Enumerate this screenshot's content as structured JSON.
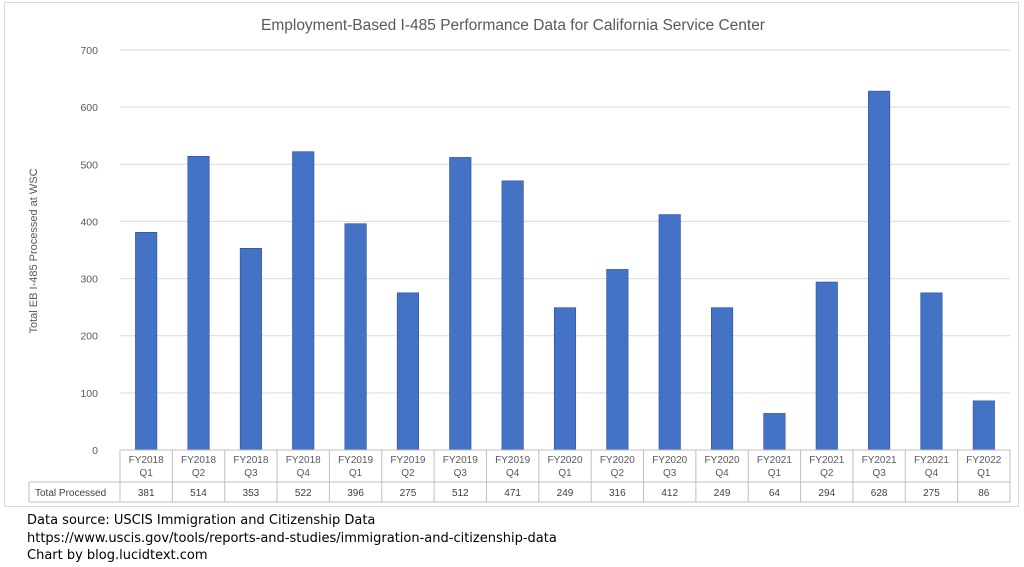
{
  "chart_data": {
    "type": "bar",
    "title": "Employment-Based I-485 Performance Data for California Service Center",
    "xlabel": "",
    "ylabel": "Total EB I-485 Processed at WSC",
    "ylim": [
      0,
      700
    ],
    "yticks": [
      0,
      100,
      200,
      300,
      400,
      500,
      600,
      700
    ],
    "grid": true,
    "categories": [
      [
        "FY2018",
        "Q1"
      ],
      [
        "FY2018",
        "Q2"
      ],
      [
        "FY2018",
        "Q3"
      ],
      [
        "FY2018",
        "Q4"
      ],
      [
        "FY2019",
        "Q1"
      ],
      [
        "FY2019",
        "Q2"
      ],
      [
        "FY2019",
        "Q3"
      ],
      [
        "FY2019",
        "Q4"
      ],
      [
        "FY2020",
        "Q1"
      ],
      [
        "FY2020",
        "Q2"
      ],
      [
        "FY2020",
        "Q3"
      ],
      [
        "FY2020",
        "Q4"
      ],
      [
        "FY2021",
        "Q1"
      ],
      [
        "FY2021",
        "Q2"
      ],
      [
        "FY2021",
        "Q3"
      ],
      [
        "FY2021",
        "Q4"
      ],
      [
        "FY2022",
        "Q1"
      ]
    ],
    "series": [
      {
        "name": "Total Processed",
        "color": "#4472C4",
        "values": [
          381,
          514,
          353,
          522,
          396,
          275,
          512,
          471,
          249,
          316,
          412,
          249,
          64,
          294,
          628,
          275,
          86
        ]
      }
    ],
    "data_table": true
  },
  "footer": {
    "line1": "Data source: USCIS Immigration and Citizenship Data",
    "line2": "https://www.uscis.gov/tools/reports-and-studies/immigration-and-citizenship-data",
    "line3": "Chart by blog.lucidtext.com"
  }
}
